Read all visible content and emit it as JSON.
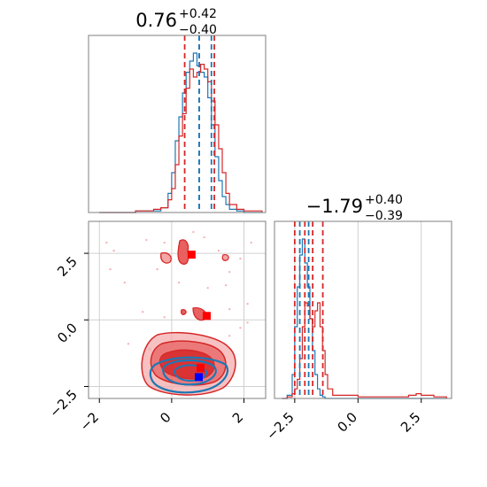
{
  "chart_data": [
    {
      "type": "histogram",
      "panel": "marginal-x",
      "title": {
        "value": "0.76",
        "upper": "+0.42",
        "lower": "−0.40"
      },
      "xlim": [
        -2.3,
        2.6
      ],
      "x": [
        -2.0,
        -1.0,
        -0.5,
        -0.3,
        -0.1,
        0.0,
        0.1,
        0.2,
        0.3,
        0.4,
        0.5,
        0.6,
        0.7,
        0.8,
        0.9,
        1.0,
        1.1,
        1.2,
        1.3,
        1.4,
        1.5,
        1.6,
        1.8,
        2.0,
        2.5
      ],
      "series": [
        {
          "color": "#1f77b4",
          "values": [
            0,
            0.01,
            0.01,
            0.03,
            0.12,
            0.25,
            0.45,
            0.6,
            0.75,
            0.88,
            0.95,
            1.0,
            0.92,
            0.88,
            0.85,
            0.72,
            0.55,
            0.35,
            0.2,
            0.1,
            0.05,
            0.02,
            0.01,
            0,
            0
          ]
        },
        {
          "color": "#d62728",
          "values": [
            0,
            0.01,
            0.02,
            0.03,
            0.08,
            0.15,
            0.3,
            0.48,
            0.62,
            0.78,
            0.9,
            0.85,
            0.88,
            0.93,
            0.9,
            0.82,
            0.7,
            0.55,
            0.4,
            0.25,
            0.12,
            0.05,
            0.02,
            0.01,
            0
          ]
        }
      ],
      "quantiles": [
        {
          "color": "#d62728",
          "values": [
            0.36,
            0.76,
            1.18
          ]
        },
        {
          "color": "#1f77b4",
          "values": [
            0.76,
            1.1
          ]
        }
      ]
    },
    {
      "type": "contour",
      "panel": "joint",
      "xlim": [
        -2.3,
        2.6
      ],
      "ylim": [
        -2.95,
        3.7
      ],
      "xticks": [
        {
          "value": -2,
          "label": "−2"
        },
        {
          "value": 0,
          "label": "0"
        },
        {
          "value": 2,
          "label": "2"
        }
      ],
      "yticks": [
        {
          "value": -2.5,
          "label": "−2.5"
        },
        {
          "value": 0.0,
          "label": "0.0"
        },
        {
          "value": 2.5,
          "label": "2.5"
        }
      ],
      "markers": [
        {
          "color": "#0000ff",
          "x": 0.75,
          "y": -2.15
        },
        {
          "color": "#ff0000",
          "x": 0.8,
          "y": -1.8
        },
        {
          "color": "#ff0000",
          "x": 0.55,
          "y": 2.45
        },
        {
          "color": "#ff0000",
          "x": 0.97,
          "y": 0.15
        }
      ]
    },
    {
      "type": "histogram",
      "panel": "marginal-y",
      "title": {
        "value": "−1.79",
        "upper": "+0.40",
        "lower": "−0.39"
      },
      "xlim": [
        -3.3,
        3.7
      ],
      "xticks": [
        {
          "value": -2.5,
          "label": "−2.5"
        },
        {
          "value": 0.0,
          "label": "0.0"
        },
        {
          "value": 2.5,
          "label": "2.5"
        }
      ],
      "x": [
        -3.0,
        -2.8,
        -2.6,
        -2.5,
        -2.4,
        -2.3,
        -2.2,
        -2.1,
        -2.0,
        -1.9,
        -1.8,
        -1.7,
        -1.6,
        -1.5,
        -1.4,
        -1.3,
        -1.2,
        -1.0,
        0.0,
        0.5,
        2.0,
        2.3,
        2.5,
        3.0,
        3.5
      ],
      "series": [
        {
          "color": "#1f77b4",
          "values": [
            0,
            0.02,
            0.15,
            0.45,
            0.7,
            0.9,
            1.0,
            0.85,
            0.7,
            0.5,
            0.3,
            0.15,
            0.06,
            0.02,
            0.01,
            0,
            0,
            0,
            0,
            0,
            0,
            0,
            0,
            0,
            0
          ]
        },
        {
          "color": "#d62728",
          "values": [
            0,
            0.01,
            0.03,
            0.06,
            0.12,
            0.25,
            0.45,
            0.6,
            0.58,
            0.5,
            0.45,
            0.55,
            0.6,
            0.45,
            0.3,
            0.15,
            0.06,
            0.02,
            0.01,
            0.01,
            0.02,
            0.03,
            0.02,
            0.01,
            0
          ]
        }
      ],
      "quantiles": [
        {
          "color": "#d62728",
          "values": [
            -2.5,
            -2.1,
            -1.79,
            -1.39
          ]
        },
        {
          "color": "#1f77b4",
          "values": [
            -2.3,
            -1.95
          ]
        }
      ]
    }
  ]
}
